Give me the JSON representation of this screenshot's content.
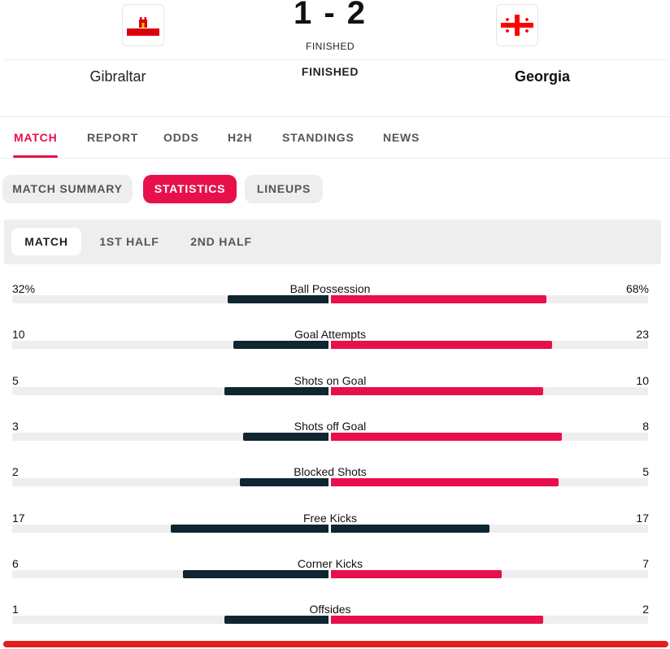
{
  "match": {
    "home_team": "Gibraltar",
    "away_team": "Georgia",
    "score": "1 - 2",
    "status_small": "FINISHED",
    "status_big": "FINISHED",
    "home_flag_icon": "gibraltar-flag-icon",
    "away_flag_icon": "georgia-flag-icon"
  },
  "tabs": [
    {
      "label": "MATCH",
      "active": true
    },
    {
      "label": "REPORT",
      "active": false
    },
    {
      "label": "ODDS",
      "active": false
    },
    {
      "label": "H2H",
      "active": false
    },
    {
      "label": "STANDINGS",
      "active": false
    },
    {
      "label": "NEWS",
      "active": false
    }
  ],
  "subtabs": [
    {
      "label": "MATCH SUMMARY",
      "active": false
    },
    {
      "label": "STATISTICS",
      "active": true
    },
    {
      "label": "LINEUPS",
      "active": false
    }
  ],
  "periods": [
    {
      "label": "MATCH",
      "active": true
    },
    {
      "label": "1ST HALF",
      "active": false
    },
    {
      "label": "2ND HALF",
      "active": false
    }
  ],
  "colors": {
    "accent": "#e8104a",
    "dark_bar": "#0f2530",
    "track": "#eeeeee",
    "bottom_line": "#e0201c"
  },
  "stats": [
    {
      "label": "Ball Possession",
      "home": "32%",
      "away": "68%",
      "home_fill": 0.32,
      "away_fill": 0.68,
      "home_color": "#0f2530",
      "away_color": "#e8104a"
    },
    {
      "label": "Goal Attempts",
      "home": "10",
      "away": "23",
      "home_fill": 0.3,
      "away_fill": 0.7,
      "home_color": "#0f2530",
      "away_color": "#e8104a"
    },
    {
      "label": "Shots on Goal",
      "home": "5",
      "away": "10",
      "home_fill": 0.33,
      "away_fill": 0.67,
      "home_color": "#0f2530",
      "away_color": "#e8104a"
    },
    {
      "label": "Shots off Goal",
      "home": "3",
      "away": "8",
      "home_fill": 0.27,
      "away_fill": 0.73,
      "home_color": "#0f2530",
      "away_color": "#e8104a"
    },
    {
      "label": "Blocked Shots",
      "home": "2",
      "away": "5",
      "home_fill": 0.28,
      "away_fill": 0.72,
      "home_color": "#0f2530",
      "away_color": "#e8104a"
    },
    {
      "label": "Free Kicks",
      "home": "17",
      "away": "17",
      "home_fill": 0.5,
      "away_fill": 0.5,
      "home_color": "#0f2530",
      "away_color": "#0f2530"
    },
    {
      "label": "Corner Kicks",
      "home": "6",
      "away": "7",
      "home_fill": 0.46,
      "away_fill": 0.54,
      "home_color": "#0f2530",
      "away_color": "#e8104a"
    },
    {
      "label": "Offsides",
      "home": "1",
      "away": "2",
      "home_fill": 0.33,
      "away_fill": 0.67,
      "home_color": "#0f2530",
      "away_color": "#e8104a"
    }
  ]
}
